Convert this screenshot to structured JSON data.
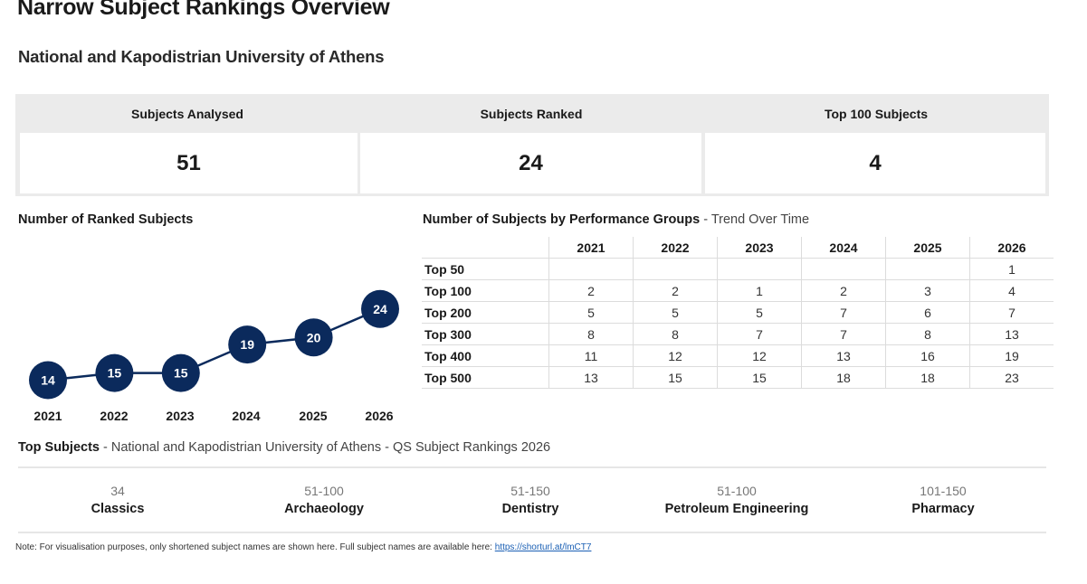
{
  "header": {
    "title": "Narrow Subject Rankings Overview",
    "subtitle": "National and Kapodistrian University of Athens"
  },
  "kpis": [
    {
      "label": "Subjects Analysed",
      "value": "51"
    },
    {
      "label": "Subjects Ranked",
      "value": "24"
    },
    {
      "label": "Top 100 Subjects",
      "value": "4"
    }
  ],
  "colors": {
    "marker": "#0b2a5c",
    "line": "#0b2a5c",
    "kpi_bg": "#ebebeb"
  },
  "chart_data": [
    {
      "type": "line",
      "title": "Number of Ranked Subjects",
      "x": [
        "2021",
        "2022",
        "2023",
        "2024",
        "2025",
        "2026"
      ],
      "values": [
        14,
        15,
        15,
        19,
        20,
        24
      ],
      "ylim": [
        10,
        26
      ],
      "grid": false
    },
    {
      "type": "table",
      "title": "Number of Subjects by Performance Groups",
      "title_suffix": "- Trend Over Time",
      "columns": [
        "2021",
        "2022",
        "2023",
        "2024",
        "2025",
        "2026"
      ],
      "rows": [
        {
          "label": "Top 50",
          "values": [
            "",
            "",
            "",
            "",
            "",
            "1"
          ]
        },
        {
          "label": "Top 100",
          "values": [
            "2",
            "2",
            "1",
            "2",
            "3",
            "4"
          ]
        },
        {
          "label": "Top 200",
          "values": [
            "5",
            "5",
            "5",
            "7",
            "6",
            "7"
          ]
        },
        {
          "label": "Top 300",
          "values": [
            "8",
            "8",
            "7",
            "7",
            "8",
            "13"
          ]
        },
        {
          "label": "Top 400",
          "values": [
            "11",
            "12",
            "12",
            "13",
            "16",
            "19"
          ]
        },
        {
          "label": "Top 500",
          "values": [
            "13",
            "15",
            "15",
            "18",
            "18",
            "23"
          ]
        }
      ]
    }
  ],
  "top_subjects": {
    "title": "Top Subjects",
    "title_suffix": "- National and Kapodistrian University of Athens - QS Subject Rankings 2026",
    "items": [
      {
        "rank": "34",
        "name": "Classics"
      },
      {
        "rank": "51-100",
        "name": "Archaeology"
      },
      {
        "rank": "51-150",
        "name": "Dentistry"
      },
      {
        "rank": "51-100",
        "name": "Petroleum Engineering"
      },
      {
        "rank": "101-150",
        "name": "Pharmacy"
      }
    ]
  },
  "note": {
    "text": "Note: For visualisation purposes, only shortened subject names are shown here. Full subject names are available here:",
    "link": "https://shorturl.at/lmCT7"
  }
}
